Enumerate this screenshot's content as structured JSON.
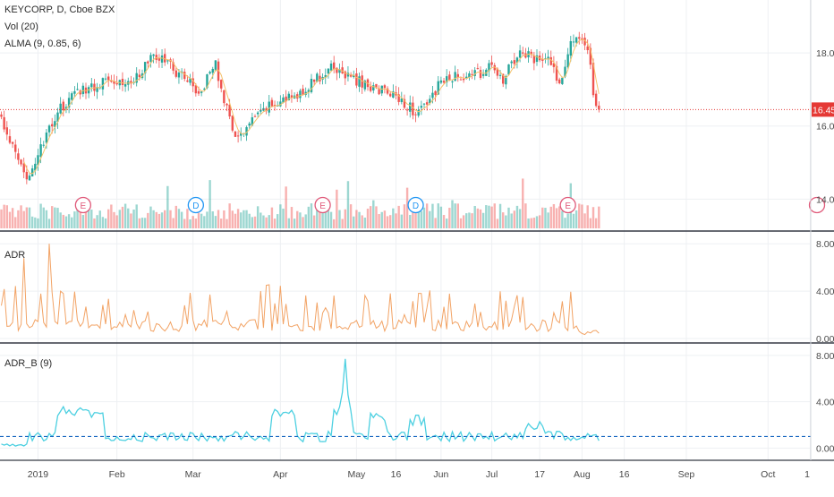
{
  "header": {
    "symbol_line": "KEYCORP, D, Cboe BZX",
    "vol_label": "Vol (20)",
    "alma_label": "ALMA (9, 0.85, 6)"
  },
  "adr_title": "ADR",
  "adrb_title": "ADR_B (9)",
  "colors": {
    "up": "#26a69a",
    "down": "#ef5350",
    "alma": "#f5c26b",
    "adr": "#f2a365",
    "adrb": "#4dd0e1",
    "adrb_ref": "#1565c0",
    "price_line": "#e53935",
    "grid": "#eef0f3",
    "axis_text": "#4a4a4a",
    "earnings": "#e05a7a",
    "dividend": "#2196f3"
  },
  "chart_data": [
    {
      "type": "candlestick",
      "title": "KEYCORP, D, Cboe BZX",
      "y_ticks": [
        "18.00",
        "16.00",
        "14.00"
      ],
      "y_range": [
        13.2,
        19.4
      ],
      "last_price": "16.45",
      "x_ticks": [
        "2019",
        "Feb",
        "Mar",
        "Apr",
        "May",
        "16",
        "Jun",
        "Jul",
        "17",
        "Aug",
        "16",
        "Sep",
        "Oct",
        "1"
      ],
      "anchors_close": [
        [
          0,
          16.2
        ],
        [
          8,
          14.6
        ],
        [
          12,
          15.0
        ],
        [
          20,
          16.4
        ],
        [
          28,
          17.0
        ],
        [
          34,
          17.1
        ],
        [
          38,
          17.4
        ],
        [
          42,
          17.2
        ],
        [
          46,
          17.2
        ],
        [
          54,
          17.9
        ],
        [
          58,
          17.8
        ],
        [
          62,
          17.5
        ],
        [
          66,
          17.3
        ],
        [
          70,
          16.9
        ],
        [
          76,
          17.7
        ],
        [
          82,
          15.8
        ],
        [
          86,
          15.8
        ],
        [
          90,
          16.2
        ],
        [
          96,
          16.6
        ],
        [
          104,
          16.8
        ],
        [
          112,
          17.3
        ],
        [
          118,
          17.6
        ],
        [
          122,
          17.4
        ],
        [
          130,
          17.1
        ],
        [
          138,
          16.9
        ],
        [
          144,
          16.6
        ],
        [
          148,
          16.3
        ],
        [
          156,
          17.2
        ],
        [
          164,
          17.4
        ],
        [
          168,
          17.4
        ],
        [
          174,
          17.6
        ],
        [
          178,
          17.3
        ],
        [
          184,
          18.0
        ],
        [
          190,
          17.8
        ],
        [
          194,
          17.9
        ],
        [
          198,
          17.1
        ],
        [
          202,
          18.4
        ],
        [
          206,
          18.5
        ],
        [
          208,
          18.2
        ],
        [
          210,
          16.9
        ],
        [
          212,
          16.45
        ]
      ],
      "events": [
        {
          "label": "E",
          "kind": "earnings",
          "bar": 29
        },
        {
          "label": "D",
          "kind": "dividend",
          "bar": 69
        },
        {
          "label": "E",
          "kind": "earnings",
          "bar": 114
        },
        {
          "label": "D",
          "kind": "dividend",
          "bar": 147
        },
        {
          "label": "E",
          "kind": "earnings",
          "bar": 201
        }
      ]
    },
    {
      "type": "line",
      "title": "ADR",
      "y_ticks": [
        "8.00",
        "4.00",
        "0.00"
      ],
      "y_range": [
        -0.3,
        9.0
      ]
    },
    {
      "type": "line",
      "title": "ADR_B (9)",
      "y_ticks": [
        "8.00",
        "4.00",
        "0.00"
      ],
      "y_range": [
        -0.9,
        9.0
      ],
      "reference_level": 1.0
    }
  ]
}
